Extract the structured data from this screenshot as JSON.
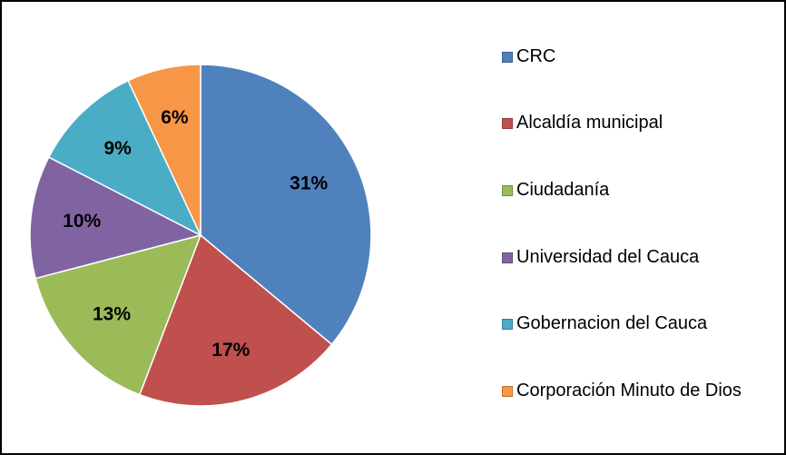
{
  "chart_data": {
    "type": "pie",
    "categories": [
      "CRC",
      "Alcaldía municipal",
      "Ciudadanía",
      "Universidad del Cauca",
      "Gobernacion del Cauca",
      "Corporación Minuto de Dios"
    ],
    "values": [
      31,
      17,
      13,
      10,
      9,
      6
    ],
    "value_labels": [
      "31%",
      "17%",
      "13%",
      "10%",
      "9%",
      "6%"
    ],
    "colors": [
      "#4f81bd",
      "#c0504d",
      "#9bbb59",
      "#8064a2",
      "#4bacc6",
      "#f79646"
    ]
  }
}
